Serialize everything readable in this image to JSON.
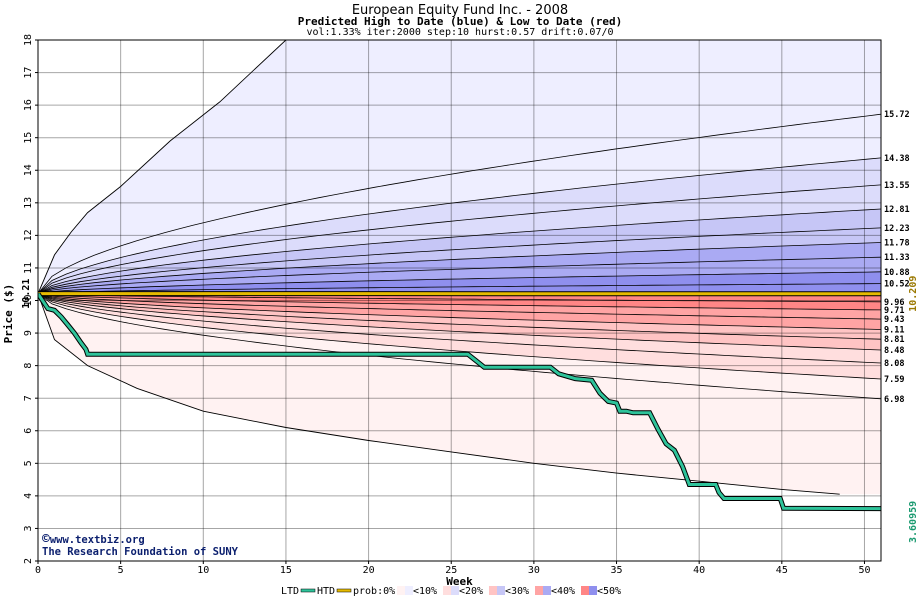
{
  "colors": {
    "blue_band_1": "#eeeeff",
    "blue_band_2": "#dcdcfb",
    "blue_band_3": "#c6c6f6",
    "blue_band_4": "#aaaaf3",
    "blue_band_5": "#8f8fee",
    "red_band_1": "#fff2f2",
    "red_band_2": "#ffdede",
    "red_band_3": "#ffc4c4",
    "red_band_4": "#ffa4a4",
    "red_band_5": "#ff8686",
    "ltd": "#2ec39a",
    "htd": "#e6ba00",
    "start_label": "#000000",
    "htd_label": "#9a7800",
    "ltd_label": "#1a9a70"
  },
  "credit": {
    "copyright_symbol": "©",
    "line1": "www.textbiz.org",
    "line2": "The Research Foundation of SUNY"
  },
  "chart_data": {
    "type": "area",
    "title": "European Equity Fund Inc. - 2008",
    "subtitle": "Predicted High to Date (blue) &  Low to Date (red)",
    "params": "vol:1.33% iter:2000 step:10 hurst:0.57 drift:0.07/0",
    "xlabel": "Week",
    "ylabel": "Price ($)",
    "xlim": [
      0,
      51
    ],
    "ylim": [
      2,
      18
    ],
    "x_ticks": [
      0,
      5,
      10,
      15,
      20,
      25,
      30,
      35,
      40,
      45,
      50
    ],
    "y_ticks": [
      2,
      3,
      4,
      5,
      6,
      7,
      8,
      9,
      10,
      11,
      12,
      13,
      14,
      15,
      16,
      17,
      18
    ],
    "grid": true,
    "start_price": 10.21,
    "start_label": "10.21",
    "high_curves_end": [
      10.52,
      10.88,
      11.33,
      11.78,
      12.23,
      12.81,
      13.55,
      14.38,
      15.72
    ],
    "high_curve_labels": [
      "10.52",
      "10.88",
      "11.33",
      "11.78",
      "12.23",
      "12.81",
      "13.55",
      "14.38",
      "15.72"
    ],
    "low_curves_end": [
      9.96,
      9.71,
      9.43,
      9.11,
      8.81,
      8.48,
      8.08,
      7.59,
      6.98
    ],
    "low_curve_labels": [
      "9.96",
      "9.71",
      "9.43",
      "9.11",
      "8.81",
      "8.48",
      "8.08",
      "7.59",
      "6.98"
    ],
    "outer_high_curve": {
      "x": [
        0,
        1,
        2,
        3,
        5,
        8,
        11,
        15
      ],
      "y": [
        10.21,
        11.4,
        12.1,
        12.7,
        13.5,
        14.9,
        16.1,
        18
      ]
    },
    "outer_low_curve": {
      "x": [
        0,
        1,
        3,
        6,
        10,
        15,
        20,
        25,
        30,
        35,
        40,
        45,
        48.5
      ],
      "y": [
        10.21,
        8.8,
        8.0,
        7.3,
        6.6,
        6.1,
        5.7,
        5.35,
        5.0,
        4.7,
        4.45,
        4.2,
        4.05
      ]
    },
    "htd": {
      "x": [
        0,
        29,
        51
      ],
      "y": [
        10.21,
        10.209,
        10.209
      ],
      "end_label": "10.209"
    },
    "ltd": {
      "x": [
        0,
        0.6,
        1.0,
        1.4,
        1.8,
        2.2,
        2.6,
        2.9,
        3.0,
        26.0,
        26.5,
        27.0,
        31.0,
        31.5,
        32.5,
        33.5,
        34.0,
        34.5,
        35.0,
        35.2,
        35.6,
        36.0,
        37.0,
        37.5,
        38.0,
        38.5,
        39.0,
        39.4,
        39.6,
        40.0,
        41.0,
        41.2,
        41.5,
        44.9,
        45.1,
        51.0
      ],
      "y": [
        10.21,
        9.75,
        9.7,
        9.5,
        9.25,
        9.0,
        8.7,
        8.5,
        8.35,
        8.35,
        8.15,
        7.95,
        7.95,
        7.75,
        7.6,
        7.55,
        7.15,
        6.9,
        6.85,
        6.6,
        6.6,
        6.55,
        6.55,
        6.05,
        5.6,
        5.4,
        4.9,
        4.35,
        4.35,
        4.35,
        4.35,
        4.1,
        3.92,
        3.92,
        3.62,
        3.61
      ],
      "end_label": "3.60959"
    },
    "legend": {
      "items": [
        "LTD",
        "HTD",
        "prob:0%",
        "<10%",
        "<20%",
        "<30%",
        "<40%",
        "<50%"
      ]
    }
  }
}
